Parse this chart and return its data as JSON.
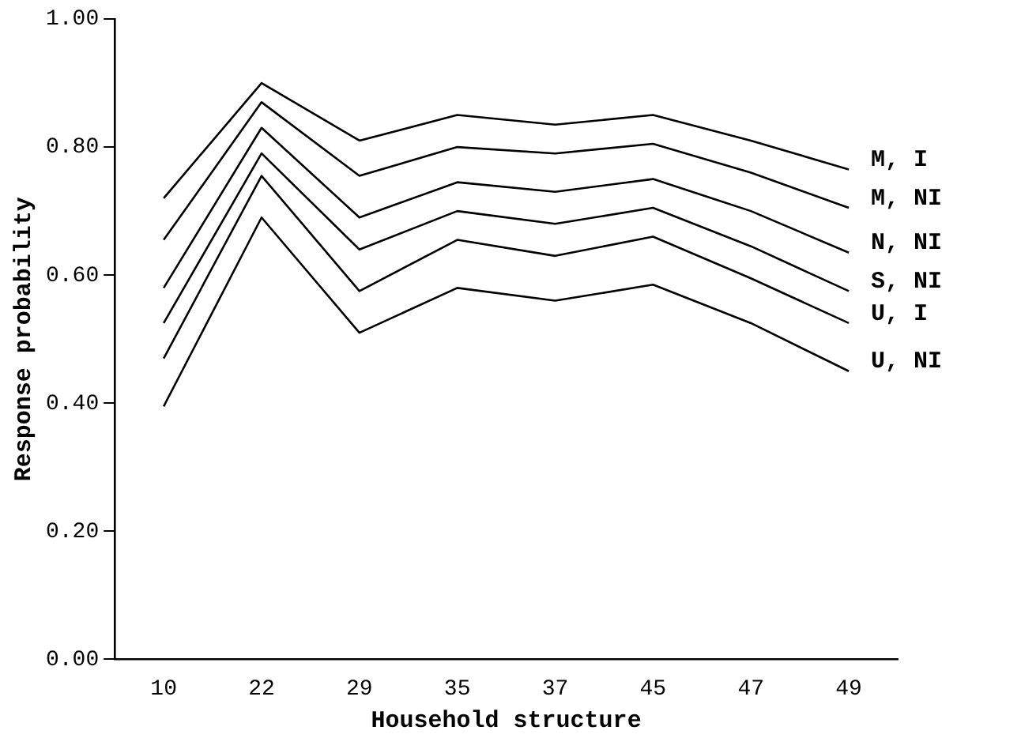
{
  "chart_data": {
    "type": "line",
    "xlabel": "Household structure",
    "ylabel": "Response probability",
    "categories": [
      "10",
      "22",
      "29",
      "35",
      "37",
      "45",
      "47",
      "49"
    ],
    "ylim": [
      0,
      1
    ],
    "yticks": [
      {
        "value": 0,
        "label": "0.00"
      },
      {
        "value": 0.2,
        "label": "0.20"
      },
      {
        "value": 0.4,
        "label": "0.40"
      },
      {
        "value": 0.6,
        "label": "0.60"
      },
      {
        "value": 0.8,
        "label": "0.80"
      },
      {
        "value": 1,
        "label": "1.00"
      }
    ],
    "grid": false,
    "legend": false,
    "marker": "none",
    "line_style": "solid",
    "series": [
      {
        "name": "M, I",
        "color": "#000000",
        "values": [
          0.72,
          0.9,
          0.81,
          0.85,
          0.835,
          0.85,
          0.81,
          0.765
        ]
      },
      {
        "name": "M, NI",
        "color": "#000000",
        "values": [
          0.655,
          0.87,
          0.755,
          0.8,
          0.79,
          0.805,
          0.76,
          0.705
        ]
      },
      {
        "name": "N, NI",
        "color": "#000000",
        "values": [
          0.58,
          0.83,
          0.69,
          0.745,
          0.73,
          0.75,
          0.7,
          0.635
        ]
      },
      {
        "name": "S, NI",
        "color": "#000000",
        "values": [
          0.525,
          0.79,
          0.64,
          0.7,
          0.68,
          0.705,
          0.645,
          0.575
        ]
      },
      {
        "name": "U, I",
        "color": "#000000",
        "values": [
          0.47,
          0.755,
          0.575,
          0.655,
          0.63,
          0.66,
          0.595,
          0.525
        ]
      },
      {
        "name": "U, NI",
        "color": "#000000",
        "values": [
          0.395,
          0.69,
          0.51,
          0.58,
          0.56,
          0.585,
          0.525,
          0.45
        ]
      }
    ]
  }
}
